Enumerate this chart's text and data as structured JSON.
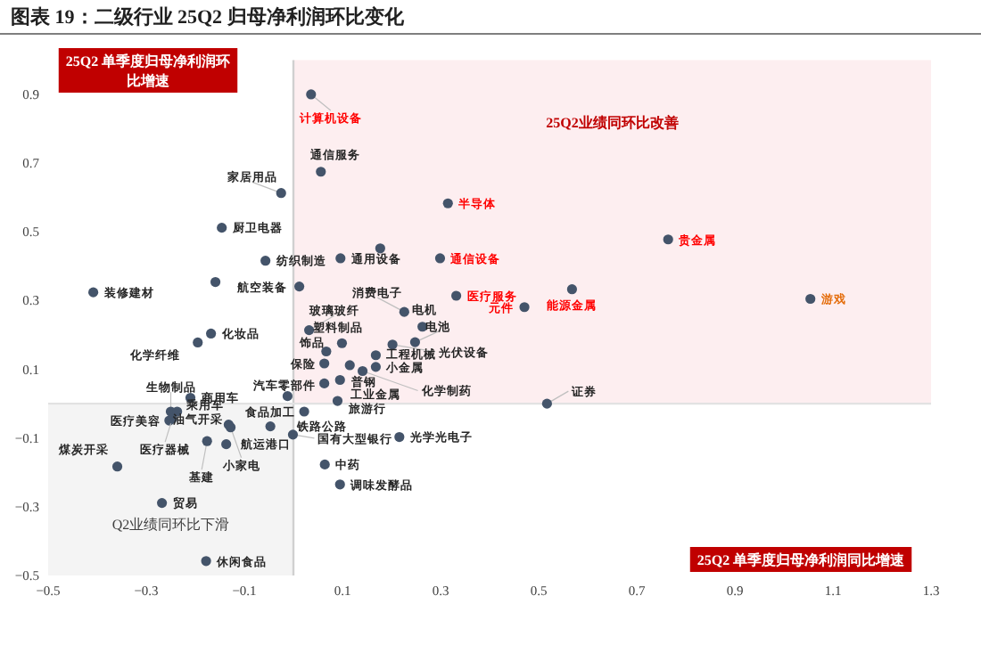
{
  "chart_data": {
    "type": "scatter",
    "title": "图表 19：二级行业 25Q2 归母净利润环比变化",
    "xlabel": "25Q2 单季度归母净利润同比增速",
    "ylabel": "25Q2 单季度归母净利润环比增速",
    "xlim": [
      -0.5,
      1.3
    ],
    "ylim": [
      -0.5,
      1.0
    ],
    "xticks": [
      {
        "value": -0.5,
        "label": "−0.5"
      },
      {
        "value": -0.3,
        "label": "−0.3"
      },
      {
        "value": -0.1,
        "label": "−0.1"
      },
      0.1,
      0.3,
      0.5,
      0.7,
      0.9,
      1.1,
      1.3
    ],
    "yticks": [
      {
        "value": -0.5,
        "label": "−0.5"
      },
      {
        "value": -0.3,
        "label": "−0.3"
      },
      {
        "value": -0.1,
        "label": "−0.1"
      },
      0.1,
      0.3,
      0.5,
      0.7,
      0.9
    ],
    "marker": "circle",
    "bands": [
      {
        "axis": "x",
        "from": 0,
        "to": 1.3,
        "label": "25Q2业绩同环比改善",
        "color": "#fdeef0"
      },
      {
        "axis": "x",
        "from": -0.5,
        "to": 0,
        "label": "Q2业绩同环比下滑",
        "color": "#f4f4f4"
      }
    ],
    "ref_lines": [
      {
        "axis": "x",
        "value": 0,
        "color": "#d0d0d0"
      },
      {
        "axis": "y",
        "value": 0,
        "color": "#e2e2e2"
      }
    ],
    "series": [
      {
        "color": "#44546a",
        "x": [
          0.056,
          -0.025,
          -0.146,
          -0.057,
          0.096,
          0.177,
          -0.159,
          -0.408,
          0.012,
          0.226,
          0.263,
          0.248,
          0.202,
          0.032,
          0.099,
          0.067,
          0.115,
          0.141,
          0.168,
          0.168,
          0.063,
          0.063,
          0.095,
          0.09,
          -0.168,
          -0.195,
          -0.25,
          -0.21,
          -0.237,
          -0.253,
          -0.247,
          -0.132,
          -0.128,
          -0.137,
          -0.176,
          -0.047,
          0.022,
          -0.001,
          0.216,
          0.064,
          0.095,
          -0.359,
          -0.268,
          -0.178,
          0.517,
          -0.012
        ],
        "values": [
          0.675,
          0.613,
          0.512,
          0.416,
          0.423,
          0.452,
          0.354,
          0.324,
          0.341,
          0.267,
          0.224,
          0.179,
          0.172,
          0.214,
          0.176,
          0.152,
          0.112,
          0.095,
          0.141,
          0.107,
          0.117,
          0.059,
          0.069,
          0.008,
          0.204,
          0.178,
          -0.023,
          0.017,
          -0.023,
          -0.049,
          -0.044,
          -0.061,
          -0.069,
          -0.118,
          -0.109,
          -0.066,
          -0.023,
          -0.09,
          -0.097,
          -0.177,
          -0.235,
          -0.183,
          -0.289,
          -0.458,
          0.0,
          0.022
        ],
        "value_labels": [
          "通信服务",
          "家居用品",
          "厨卫电器",
          "纺织制造",
          "通用设备",
          null,
          "航空装备",
          "装修建材",
          null,
          "消费电子",
          "电机",
          "电池",
          "光伏设备",
          "玻璃玻纤",
          "塑料制品",
          "饰品",
          "普钢",
          "化学制药",
          "工程机械",
          "小金属",
          "保险",
          "汽车零部件",
          "工业金属",
          "旅游行",
          "化妆品",
          "化学纤维",
          "生物制品",
          "商用车",
          "乘用车",
          "医疗美容",
          "医疗器械",
          "油气开采",
          "小家电",
          "航运港口",
          "基建",
          "食品加工",
          "铁路公路",
          "国有大型银行",
          "光学光电子",
          "中药",
          "调味发酵品",
          "煤炭开采",
          "贸易",
          "休闲食品",
          "证券",
          null
        ]
      },
      {
        "color": "#44546a",
        "x": [
          0.036,
          0.315,
          0.299,
          0.332,
          0.471,
          0.568,
          0.764
        ],
        "values": [
          0.9,
          0.583,
          0.423,
          0.314,
          0.281,
          0.333,
          0.478
        ],
        "value_labels": [
          "计算机设备",
          "半导体",
          "通信设备",
          "医疗服务",
          "元件",
          "能源金属",
          "贵金属"
        ]
      },
      {
        "color": "#44546a",
        "x": [
          1.054
        ],
        "values": [
          0.305
        ],
        "value_labels": [
          "游戏"
        ]
      }
    ]
  }
}
